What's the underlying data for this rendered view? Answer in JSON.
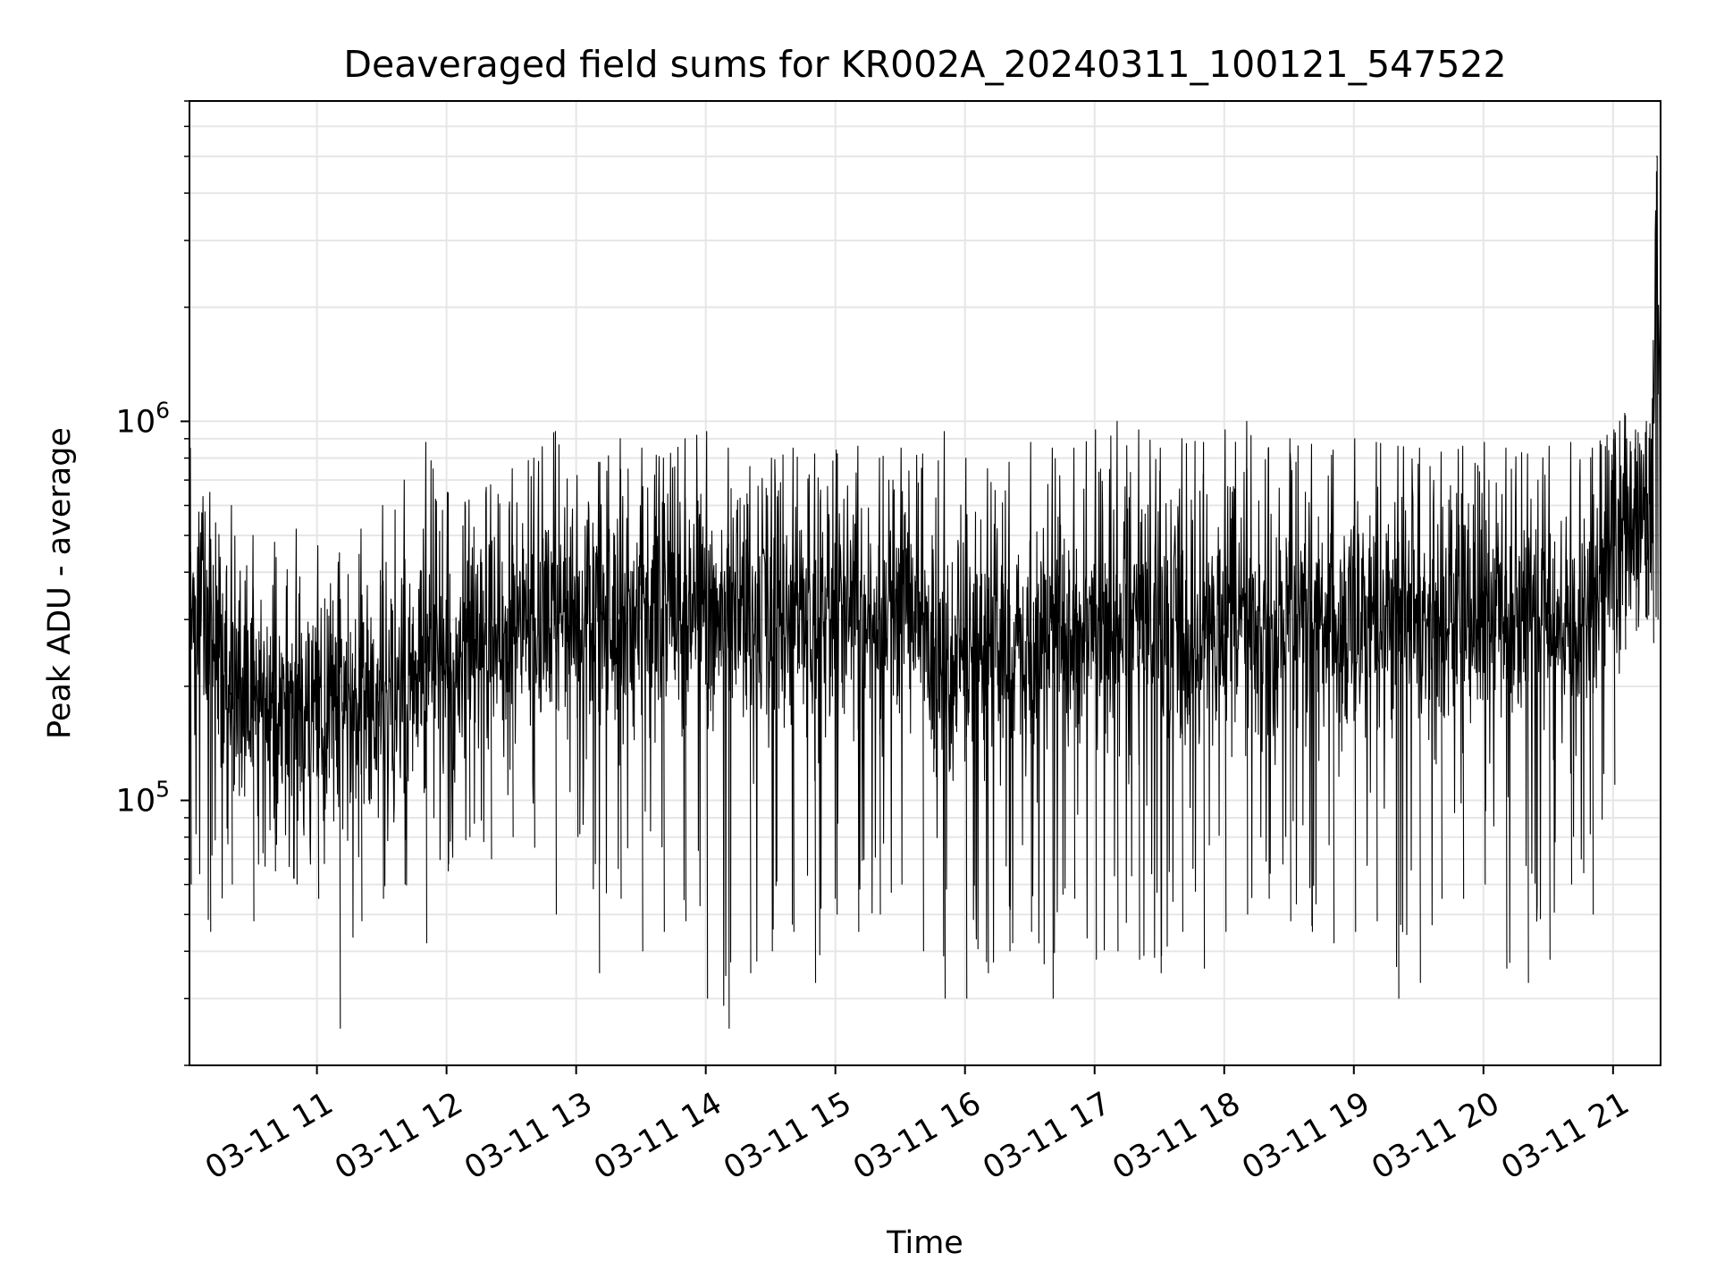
{
  "chart_data": {
    "type": "line",
    "title": "Deaveraged field sums for KR002A_20240311_100121_547522",
    "xlabel": "Time",
    "ylabel": "Peak ADU - average",
    "y_scale": "log",
    "ylim": [
      20000,
      7000000
    ],
    "xlim": [
      "2024-03-11 10:01",
      "2024-03-11 21:22"
    ],
    "grid": true,
    "legend": "none",
    "line_color": "#000000",
    "grid_color": "#e6e6e6",
    "x_ticks": [
      {
        "value": "2024-03-11 11:00",
        "label": "03-11 11"
      },
      {
        "value": "2024-03-11 12:00",
        "label": "03-11 12"
      },
      {
        "value": "2024-03-11 13:00",
        "label": "03-11 13"
      },
      {
        "value": "2024-03-11 14:00",
        "label": "03-11 14"
      },
      {
        "value": "2024-03-11 15:00",
        "label": "03-11 15"
      },
      {
        "value": "2024-03-11 16:00",
        "label": "03-11 16"
      },
      {
        "value": "2024-03-11 17:00",
        "label": "03-11 17"
      },
      {
        "value": "2024-03-11 18:00",
        "label": "03-11 18"
      },
      {
        "value": "2024-03-11 19:00",
        "label": "03-11 19"
      },
      {
        "value": "2024-03-11 20:00",
        "label": "03-11 20"
      },
      {
        "value": "2024-03-11 21:00",
        "label": "03-11 21"
      }
    ],
    "y_ticks": [
      {
        "value": 100000,
        "base": "10",
        "exp": "5"
      },
      {
        "value": 1000000,
        "base": "10",
        "exp": "6"
      }
    ],
    "series": [
      {
        "x": [
          "2024-03-11 10:01",
          "2024-03-11 10:10",
          "2024-03-11 10:20",
          "2024-03-11 10:30",
          "2024-03-11 10:40",
          "2024-03-11 10:50",
          "2024-03-11 11:00",
          "2024-03-11 11:10",
          "2024-03-11 11:20",
          "2024-03-11 11:30",
          "2024-03-11 11:40",
          "2024-03-11 11:50",
          "2024-03-11 12:00",
          "2024-03-11 12:10",
          "2024-03-11 12:20",
          "2024-03-11 12:30",
          "2024-03-11 12:40",
          "2024-03-11 12:50",
          "2024-03-11 13:00",
          "2024-03-11 13:10",
          "2024-03-11 13:20",
          "2024-03-11 13:30",
          "2024-03-11 13:40",
          "2024-03-11 13:50",
          "2024-03-11 14:00",
          "2024-03-11 14:10",
          "2024-03-11 14:20",
          "2024-03-11 14:30",
          "2024-03-11 14:40",
          "2024-03-11 14:50",
          "2024-03-11 15:00",
          "2024-03-11 15:10",
          "2024-03-11 15:20",
          "2024-03-11 15:30",
          "2024-03-11 15:40",
          "2024-03-11 15:50",
          "2024-03-11 16:00",
          "2024-03-11 16:10",
          "2024-03-11 16:20",
          "2024-03-11 16:30",
          "2024-03-11 16:40",
          "2024-03-11 16:50",
          "2024-03-11 17:00",
          "2024-03-11 17:10",
          "2024-03-11 17:20",
          "2024-03-11 17:30",
          "2024-03-11 17:40",
          "2024-03-11 17:50",
          "2024-03-11 18:00",
          "2024-03-11 18:10",
          "2024-03-11 18:20",
          "2024-03-11 18:30",
          "2024-03-11 18:40",
          "2024-03-11 18:50",
          "2024-03-11 19:00",
          "2024-03-11 19:10",
          "2024-03-11 19:20",
          "2024-03-11 19:30",
          "2024-03-11 19:40",
          "2024-03-11 19:50",
          "2024-03-11 20:00",
          "2024-03-11 20:10",
          "2024-03-11 20:20",
          "2024-03-11 20:30",
          "2024-03-11 20:40",
          "2024-03-11 20:50",
          "2024-03-11 21:00",
          "2024-03-11 21:05",
          "2024-03-11 21:10",
          "2024-03-11 21:15",
          "2024-03-11 21:18",
          "2024-03-11 21:20",
          "2024-03-11 21:22"
        ],
        "y": [
          380000,
          300000,
          190000,
          180000,
          170000,
          175000,
          180000,
          170000,
          175000,
          190000,
          210000,
          230000,
          230000,
          250000,
          260000,
          270000,
          280000,
          290000,
          300000,
          300000,
          310000,
          300000,
          320000,
          310000,
          320000,
          330000,
          300000,
          310000,
          300000,
          290000,
          300000,
          310000,
          300000,
          330000,
          290000,
          240000,
          250000,
          260000,
          280000,
          240000,
          280000,
          270000,
          280000,
          270000,
          280000,
          290000,
          270000,
          280000,
          290000,
          300000,
          300000,
          310000,
          300000,
          310000,
          300000,
          280000,
          310000,
          300000,
          280000,
          300000,
          290000,
          310000,
          300000,
          310000,
          280000,
          300000,
          500000,
          550000,
          520000,
          560000,
          580000,
          5000000,
          620000
        ],
        "min": [
          60000,
          45000,
          60000,
          48000,
          65000,
          60000,
          55000,
          25000,
          48000,
          55000,
          60000,
          42000,
          65000,
          80000,
          70000,
          80000,
          75000,
          50000,
          80000,
          35000,
          55000,
          40000,
          45000,
          48000,
          30000,
          25000,
          35000,
          40000,
          45000,
          33000,
          50000,
          45000,
          50000,
          60000,
          40000,
          30000,
          30000,
          35000,
          40000,
          45000,
          30000,
          55000,
          38000,
          40000,
          38000,
          35000,
          45000,
          36000,
          45000,
          50000,
          55000,
          48000,
          45000,
          42000,
          45000,
          48000,
          30000,
          33000,
          55000,
          55000,
          60000,
          36000,
          33000,
          38000,
          60000,
          50000,
          110000,
          250000,
          280000,
          300000,
          260000,
          300000,
          300000
        ],
        "max": [
          850000,
          650000,
          600000,
          500000,
          480000,
          520000,
          470000,
          450000,
          520000,
          600000,
          700000,
          880000,
          650000,
          620000,
          680000,
          750000,
          800000,
          940000,
          720000,
          780000,
          900000,
          850000,
          800000,
          900000,
          940000,
          850000,
          760000,
          800000,
          850000,
          820000,
          840000,
          860000,
          800000,
          850000,
          820000,
          940000,
          800000,
          750000,
          780000,
          880000,
          850000,
          850000,
          950000,
          1000000,
          950000,
          850000,
          900000,
          880000,
          950000,
          1000000,
          850000,
          900000,
          870000,
          840000,
          900000,
          880000,
          860000,
          850000,
          830000,
          860000,
          880000,
          850000,
          820000,
          860000,
          880000,
          850000,
          950000,
          1050000,
          950000,
          1000000,
          1020000,
          5000000,
          900000
        ]
      }
    ]
  }
}
